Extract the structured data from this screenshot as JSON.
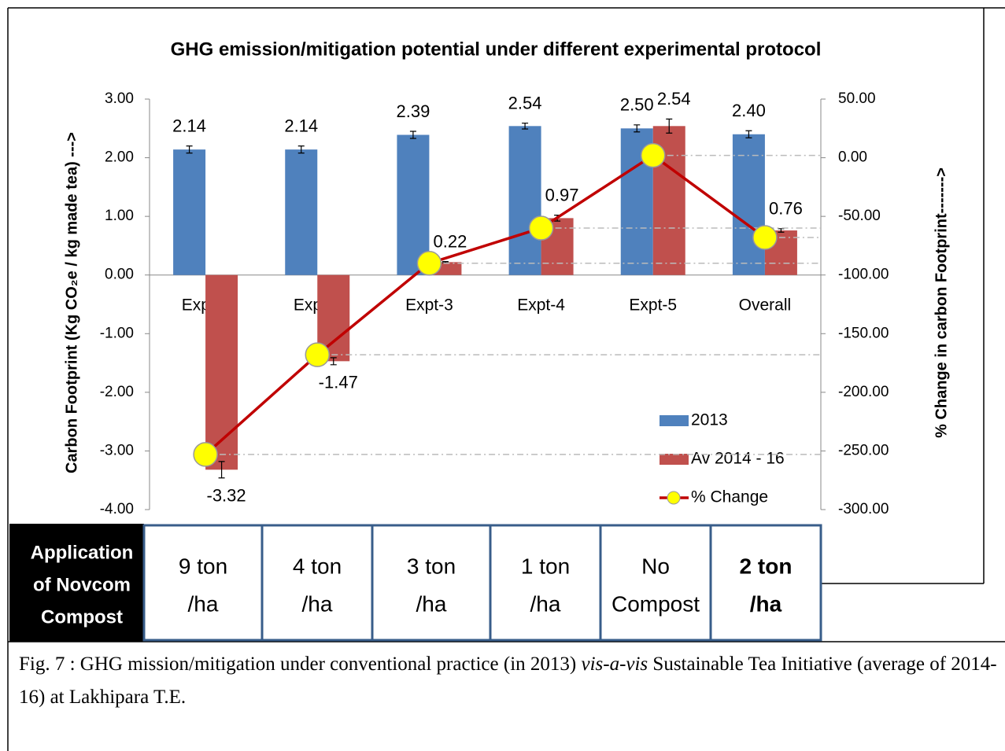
{
  "chart_data": {
    "type": "bar-line",
    "title": "GHG emission/mitigation potential under different experimental protocol",
    "y_label": "Carbon Footprint (Kg CO₂e / kg made tea) --->",
    "y2_label": "% Change in  carbon Footprint------->",
    "categories": [
      "Expt-1",
      "Expt-2",
      "Expt-3",
      "Expt-4",
      "Expt-5",
      "Overall"
    ],
    "ylim": [
      -4,
      3
    ],
    "yticks": [
      {
        "value": 3,
        "label": "3.00"
      },
      {
        "value": 2,
        "label": "2.00"
      },
      {
        "value": 1,
        "label": "1.00"
      },
      {
        "value": 0,
        "label": "0.00"
      },
      {
        "value": -1,
        "label": "-1.00"
      },
      {
        "value": -2,
        "label": "-2.00"
      },
      {
        "value": -3,
        "label": "-3.00"
      },
      {
        "value": -4,
        "label": "-4.00"
      }
    ],
    "y2lim": [
      -300,
      50
    ],
    "y2ticks": [
      {
        "value": 50,
        "label": "50.00"
      },
      {
        "value": 0,
        "label": "0.00"
      },
      {
        "value": -50,
        "label": "-50.00"
      },
      {
        "value": -100,
        "label": "-100.00"
      },
      {
        "value": -150,
        "label": "-150.00"
      },
      {
        "value": -200,
        "label": "-200.00"
      },
      {
        "value": -250,
        "label": "-250.00"
      },
      {
        "value": -300,
        "label": "-300.00"
      }
    ],
    "series": [
      {
        "name": "2013",
        "type": "bar",
        "color": "#4f81bd",
        "values": [
          2.14,
          2.14,
          2.39,
          2.54,
          2.5,
          2.4
        ],
        "value_labels": [
          "2.14",
          "2.14",
          "2.39",
          "2.54",
          "2.50",
          "2.40"
        ],
        "errors": [
          0.06,
          0.06,
          0.06,
          0.05,
          0.06,
          0.06
        ]
      },
      {
        "name": "Av 2014 - 16",
        "type": "bar",
        "color": "#c0504d",
        "values": [
          -3.32,
          -1.47,
          0.22,
          0.97,
          2.54,
          0.76
        ],
        "value_labels": [
          "-3.32",
          "-1.47",
          "0.22",
          "0.97",
          "2.54",
          "0.76"
        ],
        "errors": [
          0.14,
          0.06,
          0.01,
          0.05,
          0.12,
          0.03
        ]
      },
      {
        "name": "% Change",
        "type": "line",
        "axis": "y2",
        "color": "#c00000",
        "marker_color": "#ffff00",
        "values": [
          -253,
          -168,
          -90,
          -60,
          2,
          -68
        ]
      }
    ]
  },
  "compost_table": {
    "header": [
      "Application",
      "of Novcom",
      "Compost"
    ],
    "cells": [
      [
        "9 ton",
        "/ha"
      ],
      [
        "4 ton",
        "/ha"
      ],
      [
        "3 ton",
        "/ha"
      ],
      [
        "1 ton",
        "/ha"
      ],
      [
        "No",
        "Compost"
      ],
      [
        "2 ton",
        "/ha"
      ]
    ]
  },
  "caption": {
    "parts": [
      "Fig. 7 : GHG mission/mitigation under conventional practice (in 2013) ",
      "vis-a-vis",
      " Sustainable Tea Initiative (average of 2014-16)  at Lakhipara T.E."
    ]
  }
}
